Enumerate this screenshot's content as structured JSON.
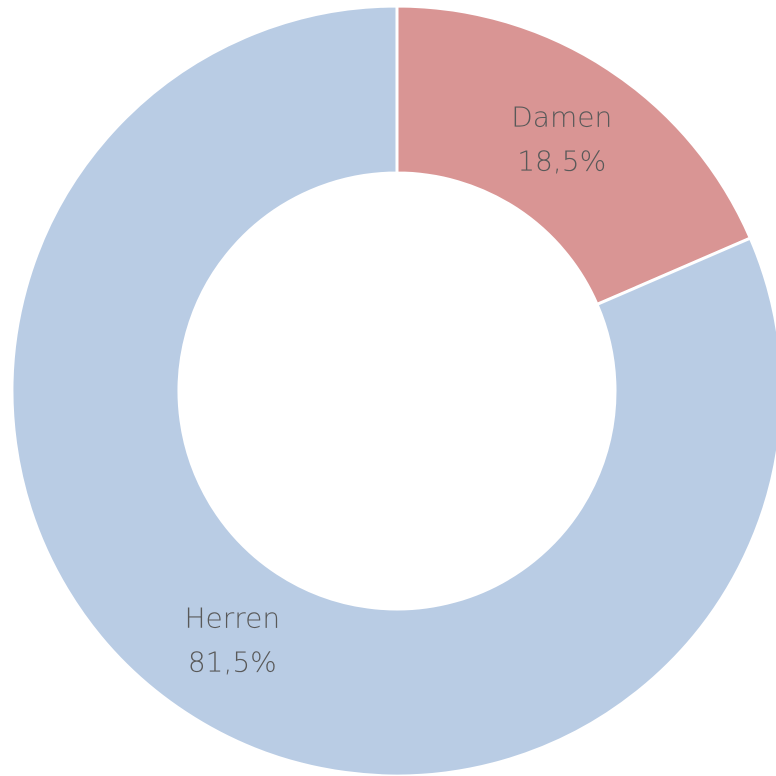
{
  "chart_data": {
    "type": "donut",
    "categories": [
      "Damen",
      "Herren"
    ],
    "values": [
      18.5,
      81.5
    ],
    "value_labels": [
      "18,5%",
      "81,5%"
    ],
    "colors": [
      "#d99594",
      "#b9cce4"
    ]
  }
}
